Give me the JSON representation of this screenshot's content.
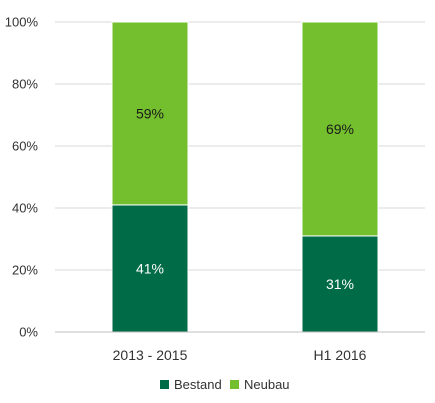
{
  "chart_data": {
    "type": "bar",
    "stacked": true,
    "percent": true,
    "categories": [
      "2013 - 2015",
      "H1 2016"
    ],
    "series": [
      {
        "name": "Bestand",
        "values": [
          41,
          31
        ],
        "labels": [
          "41%",
          "31%"
        ],
        "color": "#006b47",
        "label_color": "#ffffff"
      },
      {
        "name": "Neubau",
        "values": [
          59,
          69
        ],
        "labels": [
          "59%",
          "69%"
        ],
        "color": "#73bf2d",
        "label_color": "#1a1a1a"
      }
    ],
    "ylim": [
      0,
      100
    ],
    "yticks": [
      {
        "value": 0,
        "label": "0%"
      },
      {
        "value": 20,
        "label": "20%"
      },
      {
        "value": 40,
        "label": "40%"
      },
      {
        "value": 60,
        "label": "60%"
      },
      {
        "value": 80,
        "label": "80%"
      },
      {
        "value": 100,
        "label": "100%"
      }
    ],
    "grid": true,
    "legend": "bottom-center",
    "title": "",
    "xlabel": "",
    "ylabel": ""
  }
}
